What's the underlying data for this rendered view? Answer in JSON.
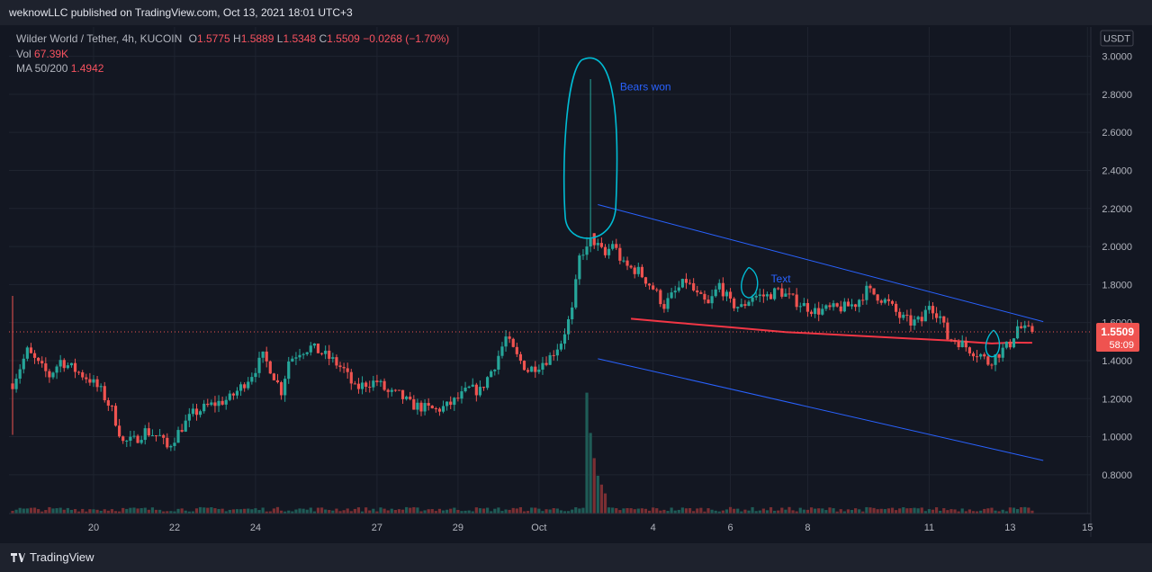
{
  "header": {
    "publisher": "weknowLLC published on TradingView.com, Oct 13, 2021 18:01 UTC+3"
  },
  "legend": {
    "symbol": "Wilder World / Tether, 4h, KUCOIN",
    "open_label": "O",
    "open": "1.5775",
    "high_label": "H",
    "high": "1.5889",
    "low_label": "L",
    "low": "1.5348",
    "close_label": "C",
    "close": "1.5509",
    "change": "−0.0268 (−1.70%)",
    "vol_label": "Vol",
    "vol": "67.39K",
    "ma_label": "MA 50/200",
    "ma": "1.4942"
  },
  "footer": {
    "brand": "TradingView",
    "logo_icon": "tradingview-logo-icon"
  },
  "colors": {
    "bg": "#131722",
    "grid": "#1f2430",
    "up": "#26a69a",
    "down": "#ef5350",
    "ma": "#f23645",
    "trend": "#2962ff",
    "annot": "#00bcd4",
    "axis_text": "#b2b5be"
  },
  "chart_data": {
    "type": "candlestick",
    "currency": "USDT",
    "price_axis": {
      "min": 0.7,
      "max": 3.05,
      "ticks": [
        0.8,
        1.0,
        1.2,
        1.4,
        1.6,
        1.8,
        2.0,
        2.2,
        2.4,
        2.6,
        2.8,
        3.0
      ],
      "tick_labels": [
        "0.8000",
        "1.0000",
        "1.2000",
        "1.4000",
        "1.6000",
        "1.8000",
        "2.0000",
        "2.2000",
        "2.4000",
        "2.6000",
        "2.8000",
        "3.0000"
      ]
    },
    "time_axis": {
      "labels": [
        "20",
        "22",
        "24",
        "27",
        "29",
        "Oct",
        "4",
        "6",
        "8",
        "11",
        "13",
        "15"
      ],
      "label_index": [
        22,
        44,
        66,
        99,
        121,
        143,
        174,
        195,
        216,
        249,
        271,
        292
      ]
    },
    "last_price": "1.5509",
    "countdown": "58:09",
    "anchors": [
      [
        0,
        1.28
      ],
      [
        4,
        1.45
      ],
      [
        7,
        1.38
      ],
      [
        10,
        1.32
      ],
      [
        13,
        1.4
      ],
      [
        17,
        1.35
      ],
      [
        21,
        1.3
      ],
      [
        24,
        1.24
      ],
      [
        27,
        1.14
      ],
      [
        30,
        0.97
      ],
      [
        33,
        0.98
      ],
      [
        36,
        1.03
      ],
      [
        40,
        1.0
      ],
      [
        42,
        0.94
      ],
      [
        46,
        1.05
      ],
      [
        49,
        1.12
      ],
      [
        53,
        1.16
      ],
      [
        56,
        1.18
      ],
      [
        59,
        1.2
      ],
      [
        62,
        1.26
      ],
      [
        65,
        1.33
      ],
      [
        68,
        1.42
      ],
      [
        70,
        1.36
      ],
      [
        73,
        1.24
      ],
      [
        75,
        1.4
      ],
      [
        78,
        1.45
      ],
      [
        81,
        1.47
      ],
      [
        84,
        1.44
      ],
      [
        87,
        1.4
      ],
      [
        90,
        1.35
      ],
      [
        93,
        1.25
      ],
      [
        96,
        1.28
      ],
      [
        99,
        1.29
      ],
      [
        102,
        1.23
      ],
      [
        105,
        1.22
      ],
      [
        108,
        1.17
      ],
      [
        112,
        1.15
      ],
      [
        115,
        1.14
      ],
      [
        118,
        1.16
      ],
      [
        121,
        1.2
      ],
      [
        124,
        1.25
      ],
      [
        127,
        1.24
      ],
      [
        131,
        1.38
      ],
      [
        134,
        1.52
      ],
      [
        137,
        1.42
      ],
      [
        140,
        1.35
      ],
      [
        143,
        1.38
      ],
      [
        146,
        1.42
      ],
      [
        149,
        1.5
      ],
      [
        152,
        1.66
      ],
      [
        154,
        1.94
      ],
      [
        157,
        2.05
      ],
      [
        159,
        2.0
      ],
      [
        161,
        1.95
      ],
      [
        163,
        2.02
      ],
      [
        166,
        1.9
      ],
      [
        170,
        1.87
      ],
      [
        174,
        1.78
      ],
      [
        177,
        1.69
      ],
      [
        180,
        1.76
      ],
      [
        183,
        1.82
      ],
      [
        186,
        1.74
      ],
      [
        189,
        1.69
      ],
      [
        192,
        1.8
      ],
      [
        195,
        1.7
      ],
      [
        198,
        1.68
      ],
      [
        201,
        1.74
      ],
      [
        205,
        1.74
      ],
      [
        208,
        1.77
      ],
      [
        212,
        1.72
      ],
      [
        215,
        1.69
      ],
      [
        218,
        1.66
      ],
      [
        222,
        1.67
      ],
      [
        226,
        1.68
      ],
      [
        229,
        1.7
      ],
      [
        232,
        1.77
      ],
      [
        235,
        1.74
      ],
      [
        238,
        1.7
      ],
      [
        241,
        1.63
      ],
      [
        244,
        1.6
      ],
      [
        247,
        1.61
      ],
      [
        249,
        1.7
      ],
      [
        252,
        1.63
      ],
      [
        254,
        1.52
      ],
      [
        257,
        1.5
      ],
      [
        260,
        1.46
      ],
      [
        263,
        1.43
      ],
      [
        265,
        1.39
      ],
      [
        268,
        1.44
      ],
      [
        271,
        1.49
      ],
      [
        273,
        1.58
      ],
      [
        275,
        1.56
      ],
      [
        277,
        1.551
      ]
    ],
    "spike": {
      "index": 157,
      "high": 2.88,
      "open": 2.0,
      "close": 2.04,
      "low": 1.97
    },
    "volume_spikes": [
      [
        156,
        480
      ],
      [
        157,
        320
      ],
      [
        158,
        220
      ],
      [
        159,
        150
      ],
      [
        160,
        115
      ],
      [
        161,
        80
      ]
    ],
    "moving_average": [
      [
        168,
        1.62
      ],
      [
        180,
        1.6
      ],
      [
        195,
        1.575
      ],
      [
        210,
        1.55
      ],
      [
        225,
        1.535
      ],
      [
        240,
        1.52
      ],
      [
        255,
        1.505
      ],
      [
        266,
        1.49
      ],
      [
        272,
        1.495
      ],
      [
        277,
        1.494
      ]
    ],
    "trendlines": [
      {
        "from": [
          159,
          2.22
        ],
        "to": [
          280,
          1.605
        ]
      },
      {
        "from": [
          159,
          1.41
        ],
        "to": [
          280,
          0.875
        ]
      }
    ],
    "annotations": [
      {
        "text": "Bears won",
        "index": 165,
        "price": 2.82
      },
      {
        "text": "Text",
        "index": 206,
        "price": 1.81
      }
    ]
  }
}
